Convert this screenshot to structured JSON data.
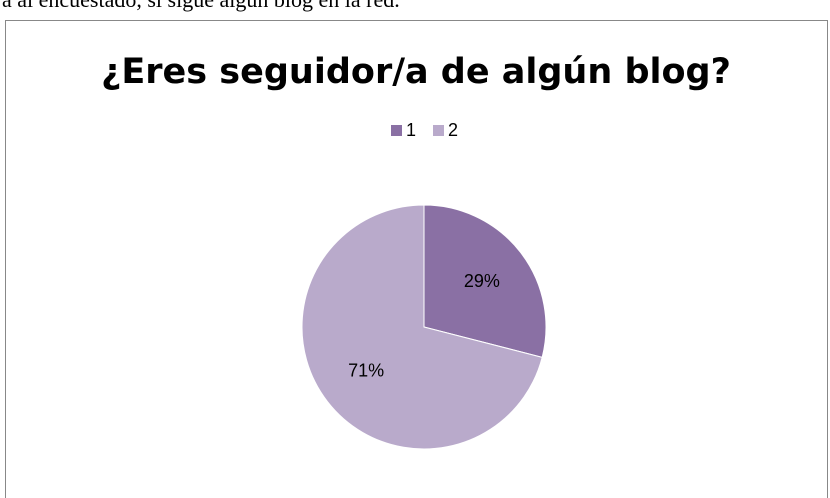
{
  "header": {
    "text": "a al encuestado, si sigue algún blog en la red."
  },
  "chart_data": {
    "type": "pie",
    "title": "¿Eres seguidor/a de algún blog?",
    "categories": [
      "1",
      "2"
    ],
    "values": [
      29,
      71
    ],
    "value_labels": [
      "29%",
      "71%"
    ],
    "colors": [
      "#8a70a4",
      "#b9aacb"
    ],
    "legend": "top"
  }
}
